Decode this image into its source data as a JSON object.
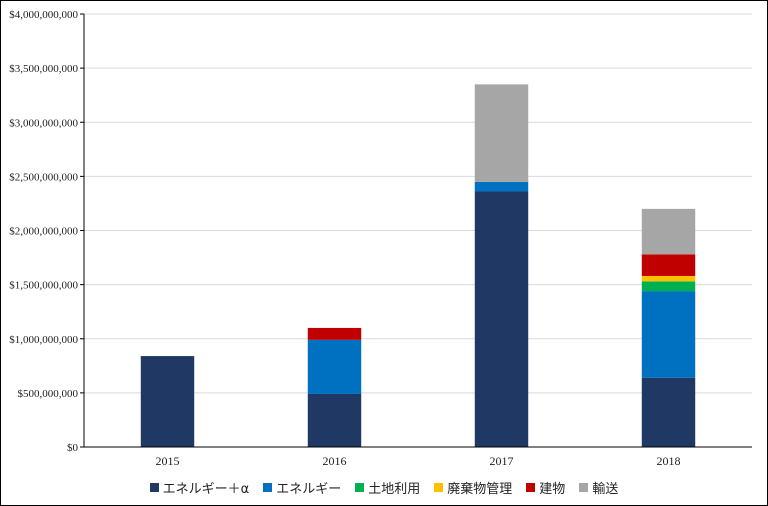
{
  "chart_data": {
    "type": "bar",
    "stacked": true,
    "categories": [
      "2015",
      "2016",
      "2017",
      "2018"
    ],
    "series": [
      {
        "name": "エネルギー＋α",
        "color": "#203864",
        "values": [
          840000000,
          490000000,
          2360000000,
          640000000
        ]
      },
      {
        "name": "エネルギー",
        "color": "#0070c0",
        "values": [
          0,
          500000000,
          90000000,
          800000000
        ]
      },
      {
        "name": "土地利用",
        "color": "#00b050",
        "values": [
          0,
          0,
          0,
          90000000
        ]
      },
      {
        "name": "廃棄物管理",
        "color": "#ffc000",
        "values": [
          0,
          0,
          0,
          50000000
        ]
      },
      {
        "name": "建物",
        "color": "#c00000",
        "values": [
          0,
          110000000,
          0,
          200000000
        ]
      },
      {
        "name": "輸送",
        "color": "#a6a6a6",
        "values": [
          0,
          0,
          900000000,
          420000000
        ]
      }
    ],
    "yticks": [
      "$0",
      "$500,000,000",
      "$1,000,000,000",
      "$1,500,000,000",
      "$2,000,000,000",
      "$2,500,000,000",
      "$3,000,000,000",
      "$3,500,000,000",
      "$4,000,000,000"
    ],
    "ylim": [
      0,
      4000000000
    ],
    "grid": true,
    "legend_position": "bottom"
  }
}
